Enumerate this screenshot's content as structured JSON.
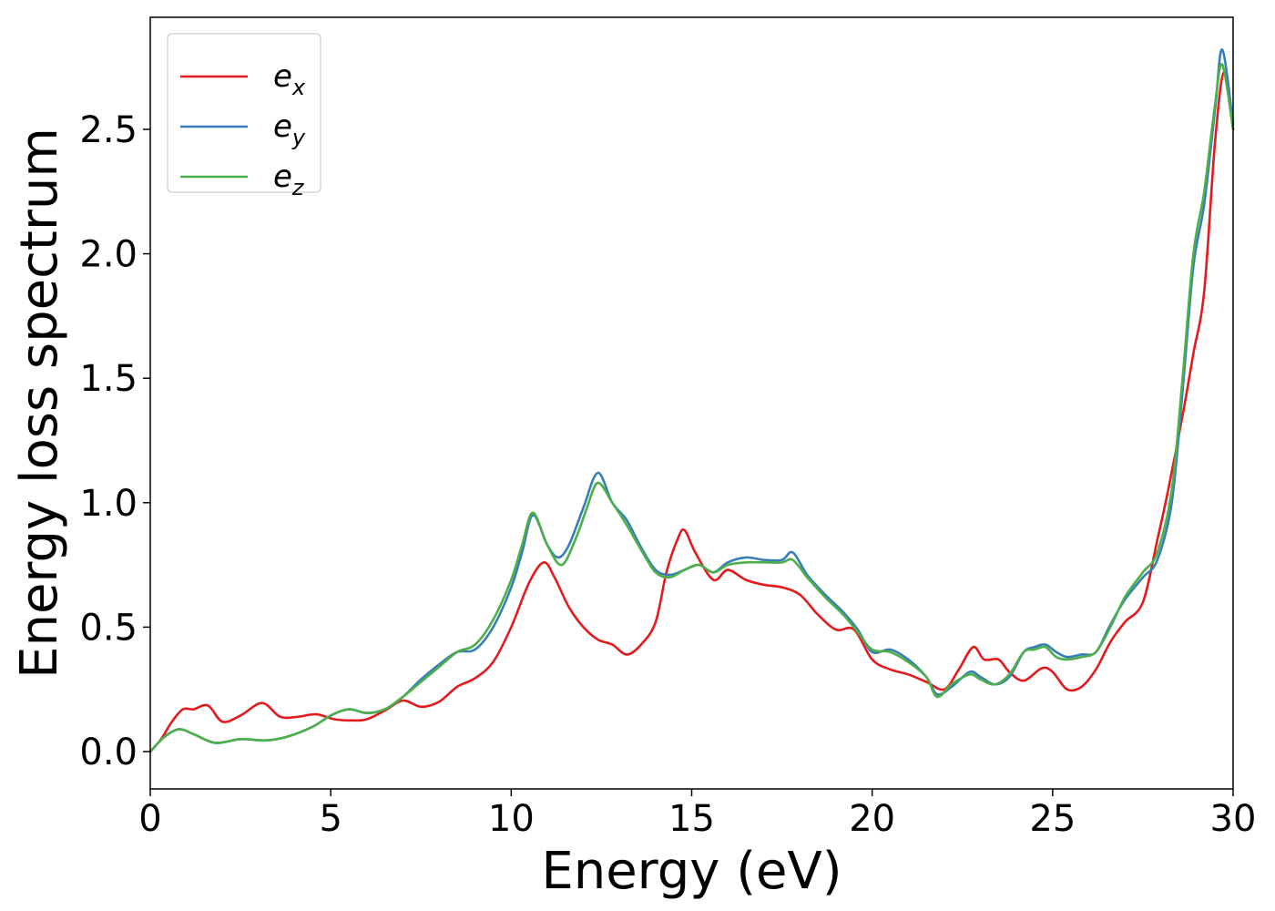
{
  "chart_data": {
    "type": "line",
    "xlabel": "Energy (eV)",
    "ylabel": "Energy loss spectrum",
    "xlim": [
      0,
      30
    ],
    "ylim": [
      -0.15,
      2.95
    ],
    "xticks": [
      0,
      5,
      10,
      15,
      20,
      25,
      30
    ],
    "xtick_labels": [
      "0",
      "5",
      "10",
      "15",
      "20",
      "25",
      "30"
    ],
    "yticks": [
      0.0,
      0.5,
      1.0,
      1.5,
      2.0,
      2.5
    ],
    "ytick_labels": [
      "0.0",
      "0.5",
      "1.0",
      "1.5",
      "2.0",
      "2.5"
    ],
    "grid": false,
    "legend_position": "top-left",
    "series": [
      {
        "name": "e_x",
        "label_main": "e",
        "label_sub": "x",
        "color": "#e41a1c",
        "points": [
          [
            0,
            0
          ],
          [
            0.3,
            0.05
          ],
          [
            0.6,
            0.12
          ],
          [
            0.9,
            0.17
          ],
          [
            1.2,
            0.17
          ],
          [
            1.6,
            0.185
          ],
          [
            2.0,
            0.12
          ],
          [
            2.5,
            0.145
          ],
          [
            3.1,
            0.195
          ],
          [
            3.6,
            0.14
          ],
          [
            4.1,
            0.14
          ],
          [
            4.6,
            0.15
          ],
          [
            5.1,
            0.13
          ],
          [
            5.6,
            0.125
          ],
          [
            6.0,
            0.13
          ],
          [
            6.5,
            0.165
          ],
          [
            7.0,
            0.205
          ],
          [
            7.5,
            0.18
          ],
          [
            8.0,
            0.2
          ],
          [
            8.5,
            0.26
          ],
          [
            9.0,
            0.295
          ],
          [
            9.5,
            0.36
          ],
          [
            10.0,
            0.5
          ],
          [
            10.5,
            0.68
          ],
          [
            10.9,
            0.76
          ],
          [
            11.2,
            0.7
          ],
          [
            11.6,
            0.58
          ],
          [
            12.0,
            0.5
          ],
          [
            12.4,
            0.45
          ],
          [
            12.8,
            0.43
          ],
          [
            13.2,
            0.39
          ],
          [
            13.6,
            0.43
          ],
          [
            14.0,
            0.52
          ],
          [
            14.3,
            0.72
          ],
          [
            14.6,
            0.85
          ],
          [
            14.8,
            0.89
          ],
          [
            15.1,
            0.8
          ],
          [
            15.6,
            0.69
          ],
          [
            16.0,
            0.73
          ],
          [
            16.5,
            0.69
          ],
          [
            17.0,
            0.67
          ],
          [
            17.5,
            0.66
          ],
          [
            18.0,
            0.63
          ],
          [
            18.5,
            0.55
          ],
          [
            19.0,
            0.49
          ],
          [
            19.5,
            0.49
          ],
          [
            20.0,
            0.37
          ],
          [
            20.5,
            0.33
          ],
          [
            21.0,
            0.31
          ],
          [
            21.5,
            0.28
          ],
          [
            22.0,
            0.25
          ],
          [
            22.4,
            0.33
          ],
          [
            22.8,
            0.42
          ],
          [
            23.1,
            0.37
          ],
          [
            23.5,
            0.37
          ],
          [
            23.8,
            0.32
          ],
          [
            24.2,
            0.285
          ],
          [
            24.7,
            0.335
          ],
          [
            25.0,
            0.32
          ],
          [
            25.4,
            0.25
          ],
          [
            25.8,
            0.26
          ],
          [
            26.2,
            0.33
          ],
          [
            26.6,
            0.44
          ],
          [
            27.0,
            0.52
          ],
          [
            27.5,
            0.6
          ],
          [
            27.9,
            0.85
          ],
          [
            28.2,
            1.05
          ],
          [
            28.6,
            1.35
          ],
          [
            28.9,
            1.6
          ],
          [
            29.2,
            1.85
          ],
          [
            29.5,
            2.45
          ],
          [
            29.75,
            2.73
          ],
          [
            30.0,
            2.5
          ]
        ]
      },
      {
        "name": "e_y",
        "label_main": "e",
        "label_sub": "y",
        "color": "#377eb8",
        "points": [
          [
            0,
            0
          ],
          [
            0.4,
            0.06
          ],
          [
            0.8,
            0.09
          ],
          [
            1.2,
            0.07
          ],
          [
            1.8,
            0.035
          ],
          [
            2.5,
            0.05
          ],
          [
            3.2,
            0.045
          ],
          [
            3.8,
            0.06
          ],
          [
            4.5,
            0.1
          ],
          [
            5.0,
            0.145
          ],
          [
            5.5,
            0.17
          ],
          [
            6.0,
            0.155
          ],
          [
            6.5,
            0.17
          ],
          [
            7.0,
            0.22
          ],
          [
            7.5,
            0.29
          ],
          [
            8.0,
            0.35
          ],
          [
            8.5,
            0.4
          ],
          [
            9.0,
            0.41
          ],
          [
            9.5,
            0.5
          ],
          [
            10.0,
            0.66
          ],
          [
            10.3,
            0.8
          ],
          [
            10.6,
            0.95
          ],
          [
            11.0,
            0.83
          ],
          [
            11.3,
            0.78
          ],
          [
            11.6,
            0.83
          ],
          [
            12.0,
            0.98
          ],
          [
            12.4,
            1.12
          ],
          [
            12.8,
            1.0
          ],
          [
            13.2,
            0.93
          ],
          [
            13.6,
            0.82
          ],
          [
            14.0,
            0.73
          ],
          [
            14.4,
            0.71
          ],
          [
            14.8,
            0.73
          ],
          [
            15.2,
            0.75
          ],
          [
            15.6,
            0.72
          ],
          [
            16.0,
            0.76
          ],
          [
            16.5,
            0.78
          ],
          [
            17.0,
            0.77
          ],
          [
            17.5,
            0.77
          ],
          [
            17.8,
            0.8
          ],
          [
            18.2,
            0.71
          ],
          [
            18.7,
            0.63
          ],
          [
            19.2,
            0.56
          ],
          [
            19.6,
            0.49
          ],
          [
            20.0,
            0.4
          ],
          [
            20.5,
            0.41
          ],
          [
            21.0,
            0.37
          ],
          [
            21.5,
            0.3
          ],
          [
            21.8,
            0.23
          ],
          [
            22.2,
            0.26
          ],
          [
            22.7,
            0.32
          ],
          [
            23.0,
            0.3
          ],
          [
            23.4,
            0.27
          ],
          [
            23.8,
            0.3
          ],
          [
            24.2,
            0.4
          ],
          [
            24.5,
            0.42
          ],
          [
            24.8,
            0.43
          ],
          [
            25.1,
            0.4
          ],
          [
            25.4,
            0.38
          ],
          [
            25.8,
            0.39
          ],
          [
            26.2,
            0.4
          ],
          [
            26.6,
            0.51
          ],
          [
            27.0,
            0.61
          ],
          [
            27.5,
            0.7
          ],
          [
            27.9,
            0.77
          ],
          [
            28.3,
            1.0
          ],
          [
            28.6,
            1.45
          ],
          [
            28.9,
            1.95
          ],
          [
            29.2,
            2.2
          ],
          [
            29.5,
            2.58
          ],
          [
            29.7,
            2.82
          ],
          [
            30.0,
            2.52
          ]
        ]
      },
      {
        "name": "e_z",
        "label_main": "e",
        "label_sub": "z",
        "color": "#4daf4a",
        "points": [
          [
            0,
            0
          ],
          [
            0.4,
            0.06
          ],
          [
            0.8,
            0.09
          ],
          [
            1.2,
            0.07
          ],
          [
            1.8,
            0.035
          ],
          [
            2.5,
            0.05
          ],
          [
            3.2,
            0.045
          ],
          [
            3.8,
            0.06
          ],
          [
            4.5,
            0.1
          ],
          [
            5.0,
            0.145
          ],
          [
            5.5,
            0.17
          ],
          [
            6.0,
            0.155
          ],
          [
            6.5,
            0.17
          ],
          [
            7.0,
            0.22
          ],
          [
            7.5,
            0.28
          ],
          [
            8.0,
            0.34
          ],
          [
            8.5,
            0.4
          ],
          [
            9.0,
            0.43
          ],
          [
            9.5,
            0.53
          ],
          [
            10.0,
            0.69
          ],
          [
            10.3,
            0.83
          ],
          [
            10.6,
            0.96
          ],
          [
            11.0,
            0.83
          ],
          [
            11.4,
            0.75
          ],
          [
            11.8,
            0.86
          ],
          [
            12.1,
            0.98
          ],
          [
            12.4,
            1.08
          ],
          [
            12.8,
            1.0
          ],
          [
            13.2,
            0.91
          ],
          [
            13.6,
            0.81
          ],
          [
            14.0,
            0.72
          ],
          [
            14.4,
            0.7
          ],
          [
            14.8,
            0.73
          ],
          [
            15.2,
            0.75
          ],
          [
            15.6,
            0.72
          ],
          [
            16.0,
            0.75
          ],
          [
            16.5,
            0.76
          ],
          [
            17.0,
            0.76
          ],
          [
            17.5,
            0.76
          ],
          [
            17.8,
            0.77
          ],
          [
            18.2,
            0.7
          ],
          [
            18.7,
            0.62
          ],
          [
            19.2,
            0.55
          ],
          [
            19.6,
            0.48
          ],
          [
            20.0,
            0.41
          ],
          [
            20.5,
            0.4
          ],
          [
            21.0,
            0.36
          ],
          [
            21.5,
            0.3
          ],
          [
            21.8,
            0.22
          ],
          [
            22.2,
            0.27
          ],
          [
            22.7,
            0.31
          ],
          [
            23.0,
            0.29
          ],
          [
            23.4,
            0.27
          ],
          [
            23.8,
            0.31
          ],
          [
            24.2,
            0.4
          ],
          [
            24.5,
            0.41
          ],
          [
            24.8,
            0.42
          ],
          [
            25.1,
            0.38
          ],
          [
            25.4,
            0.37
          ],
          [
            25.8,
            0.38
          ],
          [
            26.2,
            0.4
          ],
          [
            26.6,
            0.5
          ],
          [
            27.0,
            0.62
          ],
          [
            27.5,
            0.72
          ],
          [
            27.9,
            0.8
          ],
          [
            28.3,
            1.05
          ],
          [
            28.6,
            1.5
          ],
          [
            28.9,
            2.0
          ],
          [
            29.2,
            2.25
          ],
          [
            29.5,
            2.6
          ],
          [
            29.7,
            2.76
          ],
          [
            30.0,
            2.5
          ]
        ]
      }
    ]
  }
}
